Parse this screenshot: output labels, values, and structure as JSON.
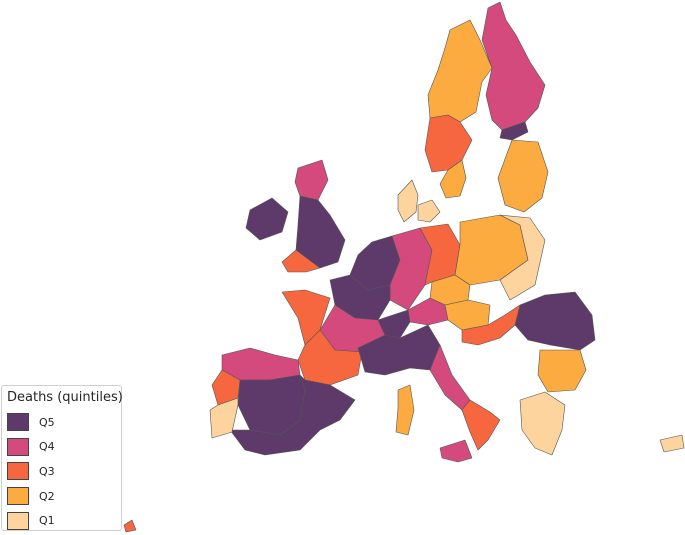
{
  "legend": {
    "title": "Deaths (quintiles)",
    "items": [
      {
        "label": "Q5",
        "color": "#5e3a6b"
      },
      {
        "label": "Q4",
        "color": "#d44a7c"
      },
      {
        "label": "Q3",
        "color": "#f7673f"
      },
      {
        "label": "Q2",
        "color": "#fbab3f"
      },
      {
        "label": "Q1",
        "color": "#fdd39e"
      }
    ]
  },
  "regions": [
    {
      "name": "finland-north",
      "quintile": "Q4"
    },
    {
      "name": "finland-south",
      "quintile": "Q5"
    },
    {
      "name": "sweden-north",
      "quintile": "Q2"
    },
    {
      "name": "sweden-central",
      "quintile": "Q3"
    },
    {
      "name": "sweden-south",
      "quintile": "Q2"
    },
    {
      "name": "norway-south",
      "quintile": "Q1"
    },
    {
      "name": "baltics",
      "quintile": "Q2"
    },
    {
      "name": "denmark",
      "quintile": "Q1"
    },
    {
      "name": "ireland",
      "quintile": "Q5"
    },
    {
      "name": "scotland",
      "quintile": "Q4"
    },
    {
      "name": "england",
      "quintile": "Q5"
    },
    {
      "name": "wales-southwest",
      "quintile": "Q3"
    },
    {
      "name": "netherlands-belgium",
      "quintile": "Q5"
    },
    {
      "name": "germany-west",
      "quintile": "Q4"
    },
    {
      "name": "germany-east",
      "quintile": "Q3"
    },
    {
      "name": "poland",
      "quintile": "Q2"
    },
    {
      "name": "poland-east",
      "quintile": "Q1"
    },
    {
      "name": "czechia",
      "quintile": "Q2"
    },
    {
      "name": "austria",
      "quintile": "Q4"
    },
    {
      "name": "hungary",
      "quintile": "Q2"
    },
    {
      "name": "romania",
      "quintile": "Q5"
    },
    {
      "name": "serbia-croatia",
      "quintile": "Q3"
    },
    {
      "name": "bulgaria",
      "quintile": "Q2"
    },
    {
      "name": "greece",
      "quintile": "Q1"
    },
    {
      "name": "france-north",
      "quintile": "Q5"
    },
    {
      "name": "france-west",
      "quintile": "Q3"
    },
    {
      "name": "france-central",
      "quintile": "Q4"
    },
    {
      "name": "france-south",
      "quintile": "Q3"
    },
    {
      "name": "switzerland-alps",
      "quintile": "Q5"
    },
    {
      "name": "italy-north",
      "quintile": "Q5"
    },
    {
      "name": "italy-central",
      "quintile": "Q4"
    },
    {
      "name": "italy-south",
      "quintile": "Q3"
    },
    {
      "name": "sicily",
      "quintile": "Q4"
    },
    {
      "name": "sardinia",
      "quintile": "Q2"
    },
    {
      "name": "spain-north",
      "quintile": "Q4"
    },
    {
      "name": "spain-central",
      "quintile": "Q5"
    },
    {
      "name": "spain-east",
      "quintile": "Q5"
    },
    {
      "name": "portugal",
      "quintile": "Q1"
    },
    {
      "name": "portugal-north",
      "quintile": "Q3"
    },
    {
      "name": "cyprus",
      "quintile": "Q1"
    },
    {
      "name": "iceland",
      "quintile": "Q3"
    }
  ]
}
